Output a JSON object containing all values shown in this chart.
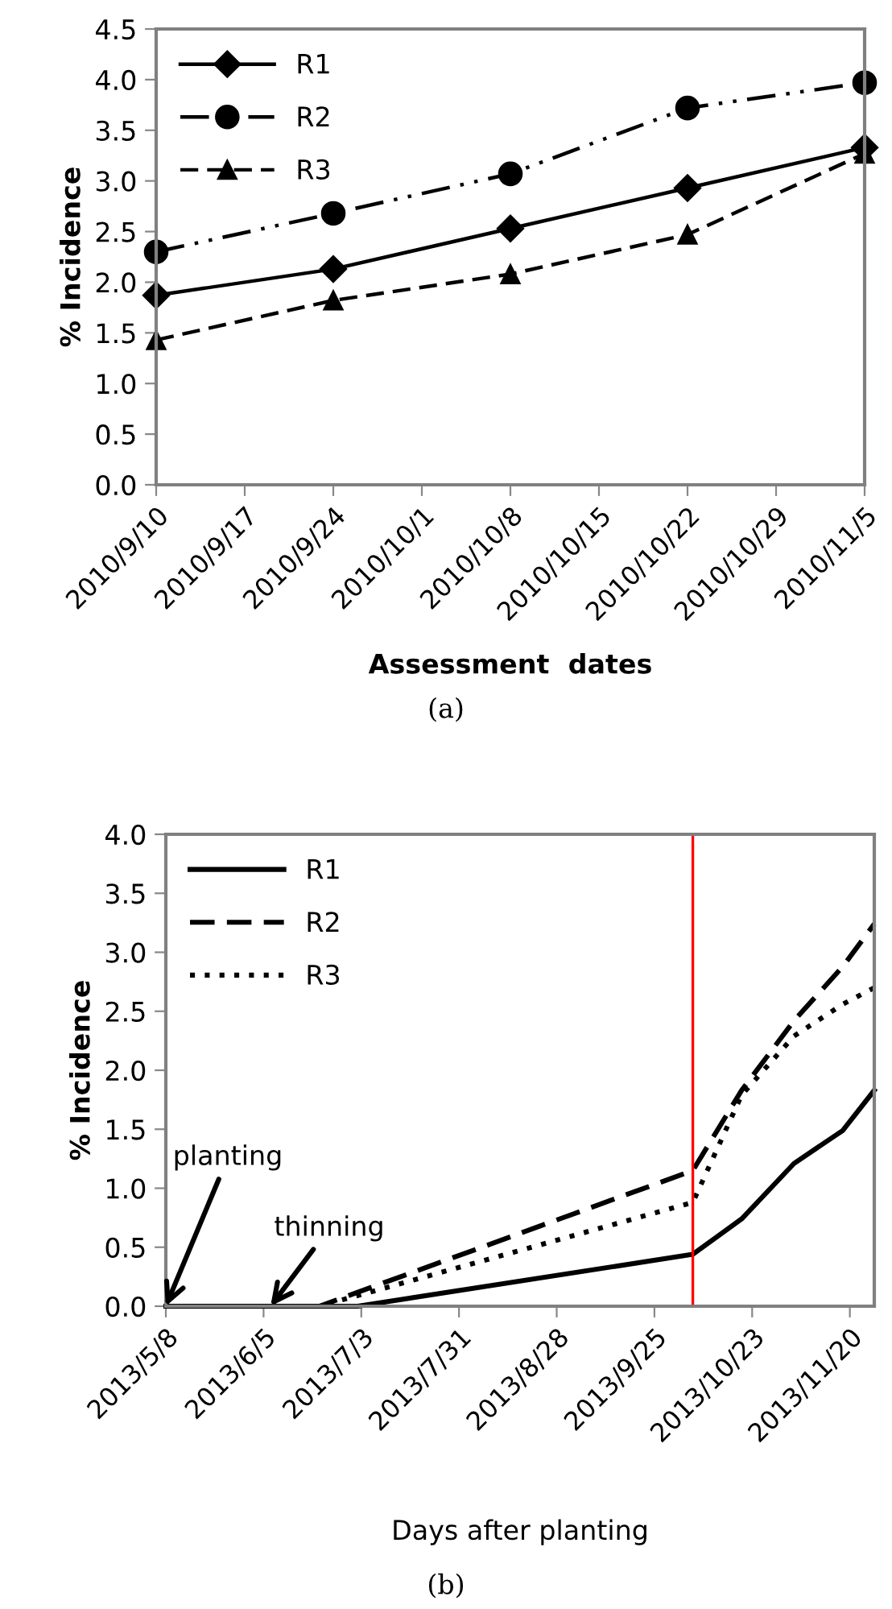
{
  "chart_data": [
    {
      "type": "line",
      "ylabel": "% Incidence",
      "xlabel": "Assessment  dates",
      "annotations": [
        "(a)"
      ],
      "x": [
        "2010-09-10",
        "2010-09-24",
        "2010-10-08",
        "2010-10-22",
        "2010-11-05"
      ],
      "series": [
        {
          "name": "R1",
          "color": "#000000",
          "marker": "diamond",
          "line_style": "solid",
          "values": [
            1.87,
            2.13,
            2.53,
            2.93,
            3.33
          ]
        },
        {
          "name": "R2",
          "color": "#000000",
          "marker": "circle",
          "line_style": "dashdot",
          "values": [
            2.3,
            2.68,
            3.07,
            3.72,
            3.97
          ]
        },
        {
          "name": "R3",
          "color": "#000000",
          "marker": "triangle",
          "line_style": "dashed",
          "values": [
            1.43,
            1.82,
            2.08,
            2.47,
            3.27
          ]
        }
      ],
      "xlim": [
        "2010-09-10",
        "2010-11-05"
      ],
      "xticks": [
        {
          "value": "2010-09-10",
          "label": "2010/9/10"
        },
        {
          "value": "2010-09-17",
          "label": "2010/9/17"
        },
        {
          "value": "2010-09-24",
          "label": "2010/9/24"
        },
        {
          "value": "2010-10-01",
          "label": "2010/10/1"
        },
        {
          "value": "2010-10-08",
          "label": "2010/10/8"
        },
        {
          "value": "2010-10-15",
          "label": "2010/10/15"
        },
        {
          "value": "2010-10-22",
          "label": "2010/10/22"
        },
        {
          "value": "2010-10-29",
          "label": "2010/10/29"
        },
        {
          "value": "2010-11-05",
          "label": "2010/11/5"
        }
      ],
      "ylim": [
        0,
        4.5
      ],
      "yticks": [
        {
          "value": 0,
          "label": "0.0"
        },
        {
          "value": 0.5,
          "label": "0.5"
        },
        {
          "value": 1,
          "label": "1.0"
        },
        {
          "value": 1.5,
          "label": "1.5"
        },
        {
          "value": 2,
          "label": "2.0"
        },
        {
          "value": 2.5,
          "label": "2.5"
        },
        {
          "value": 3,
          "label": "3.0"
        },
        {
          "value": 3.5,
          "label": "3.5"
        },
        {
          "value": 4,
          "label": "4.0"
        },
        {
          "value": 4.5,
          "label": "4.5"
        }
      ],
      "grid": false,
      "legend": "top left"
    },
    {
      "type": "line",
      "ylabel": "% Incidence",
      "xlabel": "Days after planting",
      "annotations": [
        {
          "text": "planting",
          "x": "2013-05-08",
          "y": 0
        },
        {
          "text": "thinning",
          "x": "2013-06-07",
          "y": 0
        },
        "(b)"
      ],
      "series": [
        {
          "name": "R1",
          "color": "#000000",
          "line_style": "solid",
          "x": [
            "2013-05-08",
            "2013-07-02",
            "2013-10-06",
            "2013-10-20",
            "2013-11-04",
            "2013-11-18",
            "2013-11-27"
          ],
          "values": [
            0,
            0,
            0.44,
            0.74,
            1.21,
            1.49,
            1.83
          ]
        },
        {
          "name": "R2",
          "color": "#000000",
          "line_style": "dashed",
          "x": [
            "2013-05-08",
            "2013-06-21",
            "2013-10-06",
            "2013-10-20",
            "2013-11-04",
            "2013-11-18",
            "2013-11-27"
          ],
          "values": [
            0,
            0,
            1.15,
            1.83,
            2.42,
            2.88,
            3.24
          ]
        },
        {
          "name": "R3",
          "color": "#000000",
          "line_style": "dotted",
          "x": [
            "2013-05-08",
            "2013-06-21",
            "2013-10-06",
            "2013-10-20",
            "2013-11-04",
            "2013-11-18",
            "2013-11-27"
          ],
          "values": [
            0,
            0,
            0.88,
            1.79,
            2.29,
            2.56,
            2.7
          ]
        }
      ],
      "ref_lines": [
        {
          "axis": "x",
          "value": "2013-10-06",
          "color": "#ff0000"
        }
      ],
      "xlim": [
        "2013-05-08",
        "2013-11-27"
      ],
      "xticks": [
        {
          "value": "2013-05-08",
          "label": "2013/5/8"
        },
        {
          "value": "2013-06-05",
          "label": "2013/6/5"
        },
        {
          "value": "2013-07-03",
          "label": "2013/7/3"
        },
        {
          "value": "2013-07-31",
          "label": "2013/7/31"
        },
        {
          "value": "2013-08-28",
          "label": "2013/8/28"
        },
        {
          "value": "2013-09-25",
          "label": "2013/9/25"
        },
        {
          "value": "2013-10-23",
          "label": "2013/10/23"
        },
        {
          "value": "2013-11-20",
          "label": "2013/11/20"
        }
      ],
      "ylim": [
        0,
        4.0
      ],
      "yticks": [
        {
          "value": 0,
          "label": "0.0"
        },
        {
          "value": 0.5,
          "label": "0.5"
        },
        {
          "value": 1,
          "label": "1.0"
        },
        {
          "value": 1.5,
          "label": "1.5"
        },
        {
          "value": 2,
          "label": "2.0"
        },
        {
          "value": 2.5,
          "label": "2.5"
        },
        {
          "value": 3,
          "label": "3.0"
        },
        {
          "value": 3.5,
          "label": "3.5"
        },
        {
          "value": 4,
          "label": "4.0"
        }
      ],
      "grid": false,
      "legend": "top left"
    }
  ]
}
